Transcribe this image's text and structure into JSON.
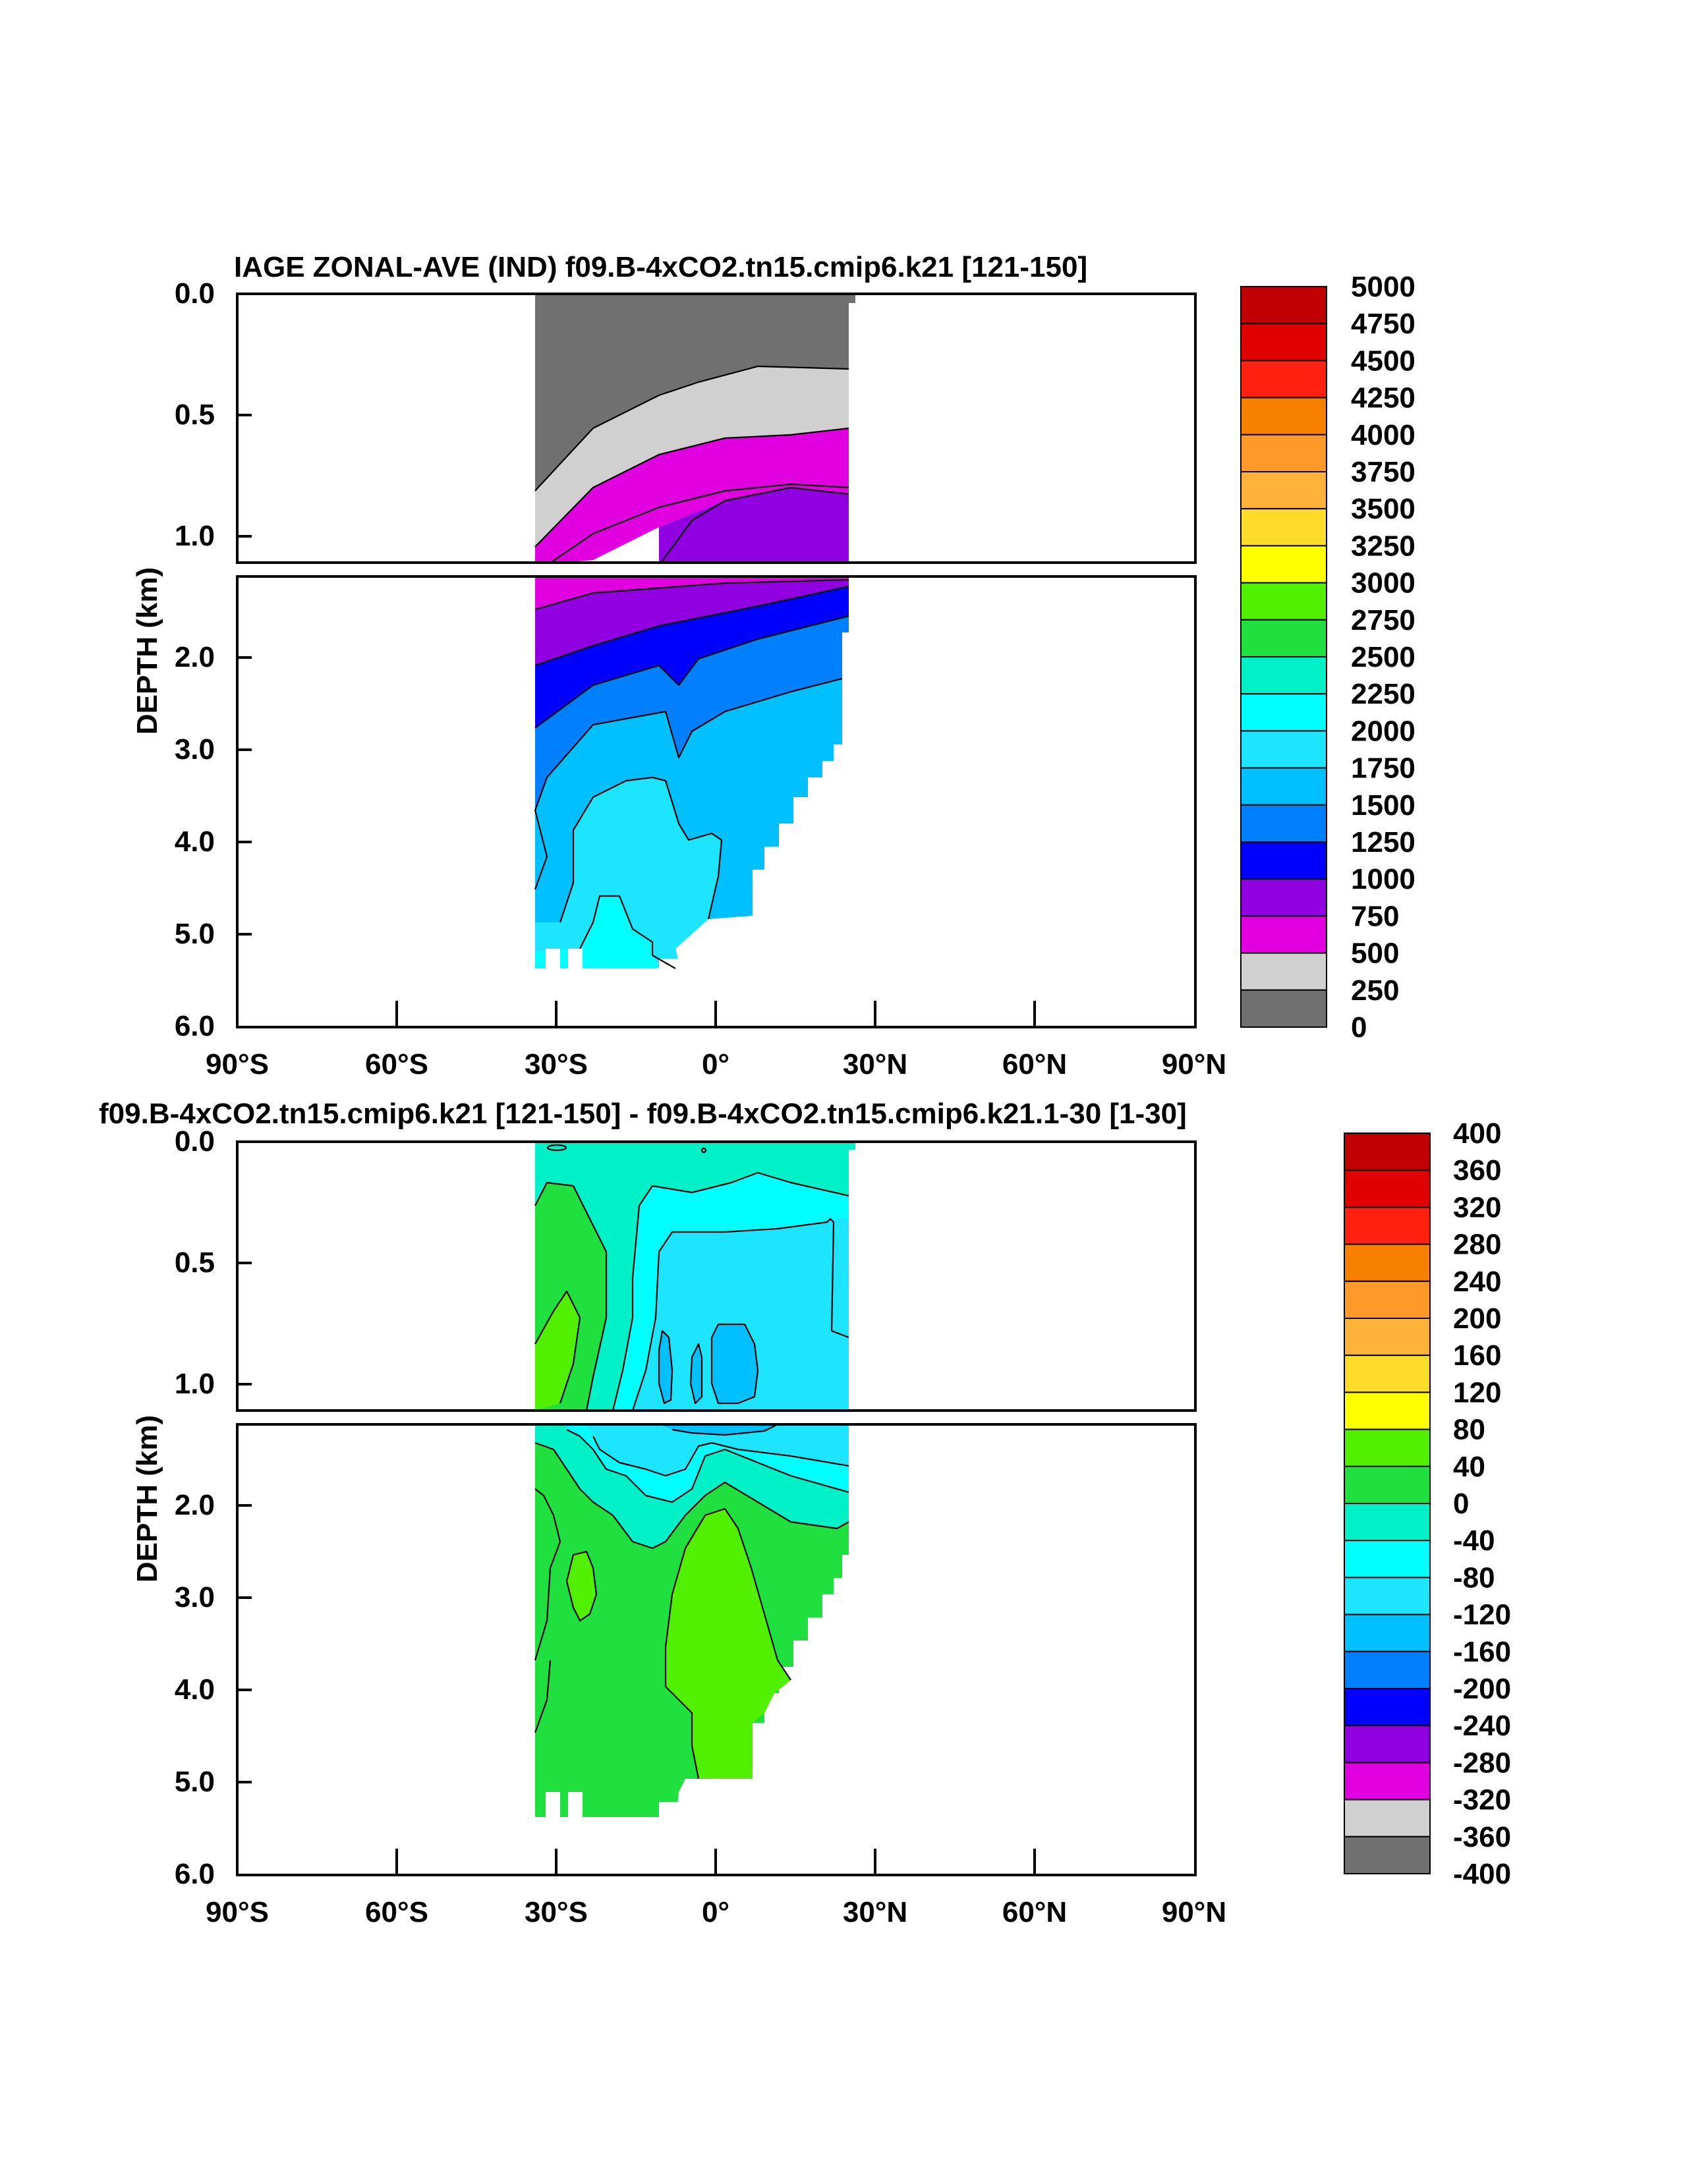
{
  "chart_data": [
    {
      "type": "contour",
      "title": "IAGE ZONAL-AVE (IND) f09.B-4xCO2.tn15.cmip6.k21 [121-150]",
      "ylabel": "DEPTH (km)",
      "y_upper_ticks": [
        "0.0",
        "0.5",
        "1.0"
      ],
      "y_lower_ticks": [
        "2.0",
        "3.0",
        "4.0",
        "5.0",
        "6.0"
      ],
      "x_ticks": [
        "90°S",
        "60°S",
        "30°S",
        "0°",
        "30°N",
        "60°N",
        "90°N"
      ],
      "xlim": [
        -90,
        90
      ],
      "ylim": [
        0,
        6
      ],
      "levels": [
        "5000",
        "4750",
        "4500",
        "4250",
        "4000",
        "3750",
        "3500",
        "3250",
        "3000",
        "2750",
        "2500",
        "2250",
        "2000",
        "1750",
        "1500",
        "1250",
        "1000",
        "750",
        "500",
        "250",
        "0"
      ],
      "colors": [
        "#c00000",
        "#e00000",
        "#ff2010",
        "#f88000",
        "#ff9a2a",
        "#ffb23a",
        "#ffdb2a",
        "#ffff00",
        "#50f000",
        "#20e040",
        "#00f0c8",
        "#00ffff",
        "#1de4ff",
        "#00c0ff",
        "#0080ff",
        "#0000ff",
        "#9000e0",
        "#e000e0",
        "#d0d0d0",
        "#707070"
      ]
    },
    {
      "type": "contour",
      "title": "f09.B-4xCO2.tn15.cmip6.k21 [121-150] - f09.B-4xCO2.tn15.cmip6.k21.1-30 [1-30]",
      "ylabel": "DEPTH (km)",
      "y_upper_ticks": [
        "0.0",
        "0.5",
        "1.0"
      ],
      "y_lower_ticks": [
        "2.0",
        "3.0",
        "4.0",
        "5.0",
        "6.0"
      ],
      "x_ticks": [
        "90°S",
        "60°S",
        "30°S",
        "0°",
        "30°N",
        "60°N",
        "90°N"
      ],
      "xlim": [
        -90,
        90
      ],
      "ylim": [
        0,
        6
      ],
      "levels": [
        "400",
        "360",
        "320",
        "280",
        "240",
        "200",
        "160",
        "120",
        "80",
        "40",
        "0",
        "-40",
        "-80",
        "-120",
        "-160",
        "-200",
        "-240",
        "-280",
        "-320",
        "-360",
        "-400"
      ],
      "colors": [
        "#c00000",
        "#e00000",
        "#ff2010",
        "#f88000",
        "#ff9a2a",
        "#ffb23a",
        "#ffdb2a",
        "#ffff00",
        "#50f000",
        "#20e040",
        "#00f0c8",
        "#00ffff",
        "#1de4ff",
        "#00c0ff",
        "#0080ff",
        "#0000ff",
        "#9000e0",
        "#e000e0",
        "#d0d0d0",
        "#707070"
      ]
    }
  ]
}
